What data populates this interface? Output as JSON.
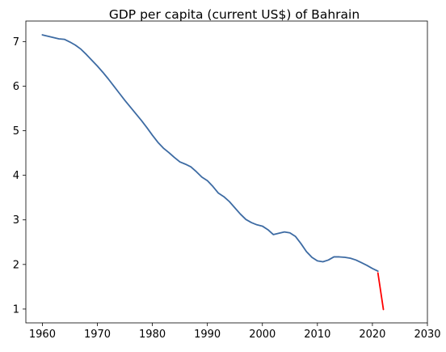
{
  "chart_data": {
    "type": "line",
    "title": "GDP per capita (current US$) of Bahrain",
    "xlabel": "",
    "ylabel": "",
    "xlim": [
      1957,
      2030
    ],
    "ylim": [
      0.69,
      7.46
    ],
    "x_ticks": [
      1960,
      1970,
      1980,
      1990,
      2000,
      2010,
      2020,
      2030
    ],
    "y_ticks": [
      1,
      2,
      3,
      4,
      5,
      6,
      7
    ],
    "grid": false,
    "legend": "none",
    "series": [
      {
        "color": "#3d6ba3",
        "x": [
          1960,
          1961,
          1962,
          1963,
          1964,
          1965,
          1966,
          1967,
          1968,
          1969,
          1970,
          1971,
          1972,
          1973,
          1974,
          1975,
          1976,
          1977,
          1978,
          1979,
          1980,
          1981,
          1982,
          1983,
          1984,
          1985,
          1986,
          1987,
          1988,
          1989,
          1990,
          1991,
          1992,
          1993,
          1994,
          1995,
          1996,
          1997,
          1998,
          1999,
          2000,
          2001,
          2002,
          2003,
          2004,
          2005,
          2006,
          2007,
          2008,
          2009,
          2010,
          2011,
          2012,
          2013,
          2014,
          2015,
          2016,
          2017,
          2018,
          2019,
          2020,
          2021
        ],
        "y": [
          7.15,
          7.12,
          7.09,
          7.06,
          7.05,
          6.99,
          6.92,
          6.83,
          6.71,
          6.58,
          6.45,
          6.31,
          6.16,
          6.0,
          5.84,
          5.68,
          5.53,
          5.38,
          5.23,
          5.07,
          4.9,
          4.74,
          4.61,
          4.51,
          4.4,
          4.3,
          4.25,
          4.19,
          4.08,
          3.96,
          3.88,
          3.75,
          3.6,
          3.52,
          3.41,
          3.27,
          3.13,
          3.01,
          2.94,
          2.89,
          2.86,
          2.78,
          2.67,
          2.7,
          2.73,
          2.71,
          2.63,
          2.47,
          2.29,
          2.16,
          2.08,
          2.06,
          2.1,
          2.17,
          2.17,
          2.16,
          2.14,
          2.1,
          2.04,
          1.98,
          1.91,
          1.85
        ]
      },
      {
        "color": "#ff0000",
        "x": [
          2021,
          2022
        ],
        "y": [
          1.81,
          0.99
        ]
      }
    ]
  }
}
